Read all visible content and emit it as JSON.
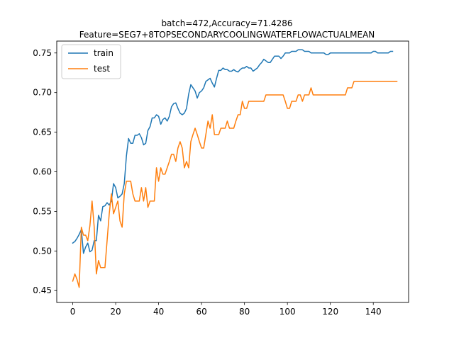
{
  "chart_data": {
    "type": "line",
    "title_line1": "batch=472,Accuracy=71.4286",
    "title_line2": "Feature=SEG7+8TOPSECONDARYCOOLINGWATERFLOWACTUALMEAN",
    "xlabel": "",
    "ylabel": "",
    "xlim": [
      -7.45,
      156.45
    ],
    "ylim": [
      0.435,
      0.765
    ],
    "xticks": [
      0,
      20,
      40,
      60,
      80,
      100,
      120,
      140
    ],
    "yticks": [
      0.45,
      0.5,
      0.55,
      0.6,
      0.65,
      0.7,
      0.75
    ],
    "ytick_labels": [
      "0.45",
      "0.50",
      "0.55",
      "0.60",
      "0.65",
      "0.70",
      "0.75"
    ],
    "legend_position": "upper left",
    "grid": false,
    "series": [
      {
        "name": "train",
        "color": "#1f77b4",
        "values": [
          0.51,
          0.512,
          0.516,
          0.521,
          0.527,
          0.497,
          0.505,
          0.51,
          0.499,
          0.501,
          0.513,
          0.513,
          0.545,
          0.538,
          0.556,
          0.557,
          0.561,
          0.558,
          0.563,
          0.585,
          0.58,
          0.567,
          0.569,
          0.572,
          0.585,
          0.62,
          0.642,
          0.636,
          0.636,
          0.646,
          0.646,
          0.648,
          0.643,
          0.634,
          0.636,
          0.652,
          0.657,
          0.668,
          0.668,
          0.672,
          0.67,
          0.66,
          0.666,
          0.668,
          0.664,
          0.67,
          0.682,
          0.686,
          0.687,
          0.68,
          0.674,
          0.672,
          0.674,
          0.68,
          0.698,
          0.71,
          0.706,
          0.702,
          0.693,
          0.7,
          0.702,
          0.706,
          0.714,
          0.716,
          0.718,
          0.712,
          0.707,
          0.718,
          0.728,
          0.728,
          0.731,
          0.729,
          0.729,
          0.727,
          0.727,
          0.729,
          0.727,
          0.726,
          0.729,
          0.731,
          0.731,
          0.733,
          0.731,
          0.731,
          0.727,
          0.729,
          0.731,
          0.735,
          0.738,
          0.742,
          0.74,
          0.738,
          0.738,
          0.742,
          0.746,
          0.746,
          0.746,
          0.743,
          0.746,
          0.75,
          0.75,
          0.75,
          0.752,
          0.752,
          0.752,
          0.754,
          0.754,
          0.754,
          0.752,
          0.752,
          0.752,
          0.75,
          0.75,
          0.75,
          0.75,
          0.75,
          0.75,
          0.75,
          0.748,
          0.748,
          0.75,
          0.75,
          0.75,
          0.75,
          0.75,
          0.75,
          0.75,
          0.75,
          0.75,
          0.75,
          0.75,
          0.75,
          0.75,
          0.75,
          0.75,
          0.75,
          0.75,
          0.75,
          0.75,
          0.75,
          0.752,
          0.752,
          0.75,
          0.75,
          0.75,
          0.75,
          0.75,
          0.75,
          0.752,
          0.752
        ]
      },
      {
        "name": "test",
        "color": "#ff7f0e",
        "values": [
          0.462,
          0.471,
          0.464,
          0.454,
          0.53,
          0.52,
          0.52,
          0.513,
          0.532,
          0.563,
          0.53,
          0.471,
          0.488,
          0.479,
          0.479,
          0.479,
          0.513,
          0.547,
          0.572,
          0.547,
          0.555,
          0.563,
          0.538,
          0.53,
          0.572,
          0.588,
          0.588,
          0.588,
          0.572,
          0.563,
          0.563,
          0.563,
          0.58,
          0.563,
          0.58,
          0.555,
          0.563,
          0.563,
          0.563,
          0.605,
          0.588,
          0.605,
          0.597,
          0.597,
          0.605,
          0.613,
          0.622,
          0.622,
          0.613,
          0.63,
          0.638,
          0.63,
          0.605,
          0.613,
          0.605,
          0.638,
          0.647,
          0.655,
          0.647,
          0.638,
          0.63,
          0.63,
          0.647,
          0.664,
          0.655,
          0.672,
          0.647,
          0.647,
          0.647,
          0.655,
          0.655,
          0.655,
          0.664,
          0.655,
          0.655,
          0.655,
          0.664,
          0.672,
          0.672,
          0.689,
          0.68,
          0.68,
          0.689,
          0.689,
          0.689,
          0.689,
          0.689,
          0.689,
          0.689,
          0.689,
          0.697,
          0.697,
          0.697,
          0.697,
          0.697,
          0.697,
          0.697,
          0.697,
          0.697,
          0.689,
          0.68,
          0.68,
          0.689,
          0.689,
          0.689,
          0.697,
          0.697,
          0.689,
          0.697,
          0.697,
          0.697,
          0.706,
          0.697,
          0.697,
          0.697,
          0.697,
          0.697,
          0.697,
          0.697,
          0.697,
          0.697,
          0.697,
          0.697,
          0.697,
          0.697,
          0.697,
          0.697,
          0.697,
          0.706,
          0.706,
          0.706,
          0.714,
          0.714,
          0.714,
          0.714,
          0.714,
          0.714,
          0.714,
          0.714,
          0.714,
          0.714,
          0.714,
          0.714,
          0.714,
          0.714,
          0.714,
          0.714,
          0.714,
          0.714,
          0.714,
          0.714,
          0.714
        ]
      }
    ]
  }
}
